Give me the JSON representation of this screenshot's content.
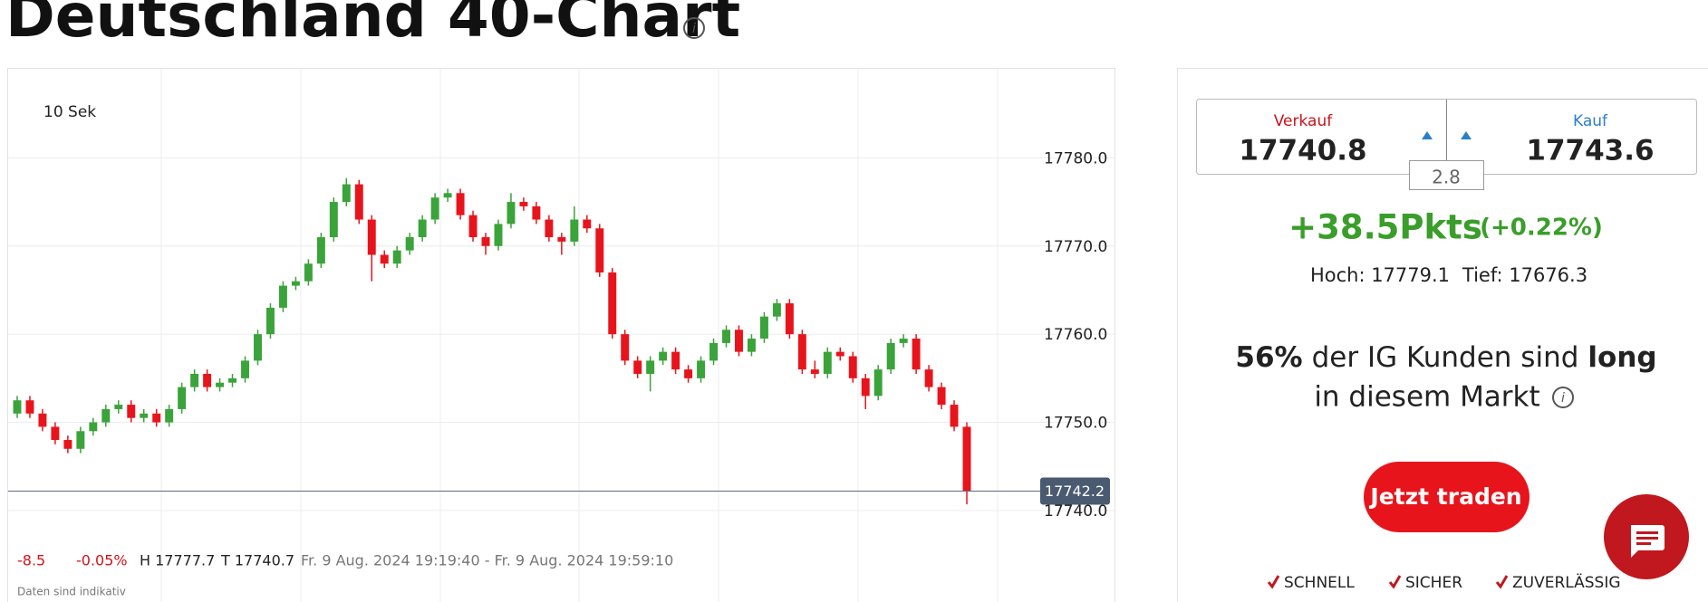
{
  "header": {
    "title": "Deutschland 40-Chart"
  },
  "chart_data": {
    "type": "candlestick",
    "interval": "10 Sek",
    "up_color": "#3aa33a",
    "down_color": "#e8141c",
    "open": [
      17751,
      17752.5,
      17751,
      17749.5,
      17748,
      17747,
      17749,
      17750,
      17751.5,
      17752,
      17750.5,
      17751,
      17750,
      17751.5,
      17754,
      17755.5,
      17754,
      17754.5,
      17755,
      17757,
      17760,
      17763,
      17765.5,
      17766,
      17768,
      17771,
      17775,
      17777,
      17773,
      17769,
      17768,
      17769.5,
      17771,
      17773,
      17775.5,
      17776,
      17773.5,
      17771,
      17770,
      17772.5,
      17775,
      17774.5,
      17773,
      17771,
      17770.5,
      17773,
      17772,
      17767,
      17760,
      17757,
      17755.5,
      17757,
      17758,
      17756,
      17755,
      17757,
      17759,
      17760.5,
      17758,
      17759.5,
      17762,
      17763.5,
      17760,
      17756,
      17755.5,
      17758,
      17757.5,
      17755,
      17753,
      17756,
      17759,
      17759.5,
      17756,
      17754,
      17752,
      17749.5
    ],
    "high": [
      17753,
      17753,
      17751.5,
      17750,
      17748.5,
      17749.5,
      17750.5,
      17752,
      17752.5,
      17752.5,
      17751.5,
      17751.5,
      17752,
      17754.5,
      17756,
      17756,
      17755,
      17755.5,
      17757.5,
      17760.5,
      17763.5,
      17766,
      17766.5,
      17768.5,
      17771.5,
      17775.5,
      17777.7,
      17777.5,
      17773.5,
      17769.5,
      17770,
      17771.5,
      17773.5,
      17776,
      17776.5,
      17776.5,
      17774,
      17771.5,
      17773,
      17776,
      17775.5,
      17775,
      17773.5,
      17771.5,
      17774.5,
      17773.5,
      17772.5,
      17767.5,
      17760.5,
      17757.5,
      17757.5,
      17758.5,
      17758.5,
      17756.5,
      17757.5,
      17759.5,
      17761,
      17761,
      17760,
      17762.5,
      17764,
      17764,
      17760.5,
      17757,
      17758.5,
      17758.5,
      17758,
      17755.5,
      17756.5,
      17759.5,
      17760,
      17760,
      17756.5,
      17754.5,
      17752.5,
      17750
    ],
    "low": [
      17750.5,
      17750.5,
      17749,
      17747.5,
      17746.5,
      17746.5,
      17748.5,
      17749.5,
      17751,
      17750,
      17750,
      17749.5,
      17749.5,
      17751,
      17753.5,
      17753.5,
      17753.5,
      17754,
      17754.5,
      17756.5,
      17759.5,
      17762.5,
      17765,
      17765.5,
      17767.5,
      17770.5,
      17774.5,
      17772.5,
      17766,
      17767.5,
      17767.5,
      17769,
      17770.5,
      17772.5,
      17775,
      17773,
      17770.5,
      17769,
      17769.5,
      17772,
      17774,
      17772.5,
      17770.5,
      17769,
      17770,
      17771.5,
      17766.5,
      17759.5,
      17756.5,
      17755,
      17753.5,
      17756.5,
      17755.5,
      17754.5,
      17754.5,
      17756.5,
      17758.5,
      17757.5,
      17757.5,
      17759,
      17761.5,
      17759.5,
      17755.5,
      17755,
      17755,
      17757,
      17754.5,
      17751.5,
      17752.5,
      17755.5,
      17758.5,
      17755.5,
      17753.5,
      17751.5,
      17749,
      17740.7
    ],
    "close": [
      17752.5,
      17751,
      17749.5,
      17748,
      17747,
      17749,
      17750,
      17751.5,
      17752,
      17750.5,
      17751,
      17750,
      17751.5,
      17754,
      17755.5,
      17754,
      17754.5,
      17755,
      17757,
      17760,
      17763,
      17765.5,
      17766,
      17768,
      17771,
      17775,
      17777,
      17773,
      17769,
      17768,
      17769.5,
      17771,
      17773,
      17775.5,
      17776,
      17773.5,
      17771,
      17770,
      17772.5,
      17775,
      17774.5,
      17773,
      17771,
      17770.5,
      17773,
      17772,
      17767,
      17760,
      17757,
      17755.5,
      17757,
      17758,
      17756,
      17755,
      17757,
      17759,
      17760.5,
      17758,
      17759.5,
      17762,
      17763.5,
      17760,
      17756,
      17755.5,
      17758,
      17757.5,
      17755,
      17753,
      17756,
      17759,
      17759.5,
      17756,
      17754,
      17752,
      17749.5,
      17742.2
    ],
    "ylim": [
      17736.3,
      17790.2
    ],
    "yticks": [
      {
        "value": 17740,
        "label": "17740.0"
      },
      {
        "value": 17750,
        "label": "17750.0"
      },
      {
        "value": 17760,
        "label": "17760.0"
      },
      {
        "value": 17770,
        "label": "17770.0"
      },
      {
        "value": 17780,
        "label": "17780.0"
      }
    ],
    "grid": true,
    "last_price": 17742.2,
    "footer": {
      "change": "-8.5",
      "change_pct": "-0.05%",
      "high": "H 17777.7",
      "low": "T 17740.7",
      "range": "Fr. 9 Aug. 2024 19:19:40 - Fr. 9 Aug. 2024 19:59:10"
    },
    "note": "Daten sind indikativ"
  },
  "market": {
    "sell_label": "Verkauf",
    "sell": "17740.8",
    "buy_label": "Kauf",
    "buy": "17743.6",
    "spread": "2.8",
    "change": "+38.5Pkts",
    "change_pct": "(+0.22%)",
    "high": "Hoch: 17779.1",
    "low": "Tief: 17676.3",
    "sentiment_pct": "56%",
    "sentiment_text": "der IG Kunden sind",
    "sentiment_word": "long",
    "sentiment_line2": "in diesem Markt",
    "button": "Jetzt traden",
    "features": [
      "SCHNELL",
      "SICHER",
      "ZUVERLÄSSIG"
    ]
  }
}
